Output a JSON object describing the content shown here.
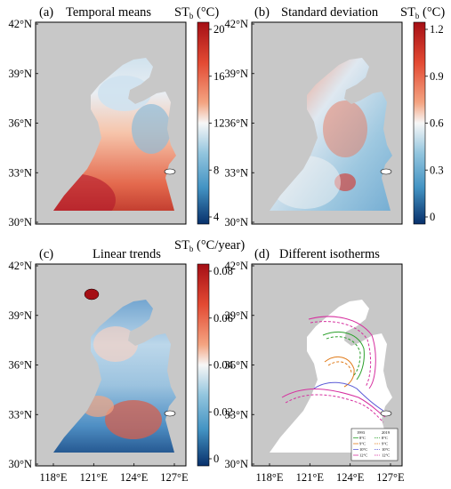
{
  "panels": [
    {
      "tag": "(a)",
      "title": "Temporal means",
      "cb_label": "ST",
      "cb_sub": "b",
      "cb_unit": " (°C)",
      "cb_ticks": [
        "20",
        "16",
        "12",
        "8",
        "4"
      ]
    },
    {
      "tag": "(b)",
      "title": "Standard deviation",
      "cb_label": "ST",
      "cb_sub": "b",
      "cb_unit": " (°C)",
      "cb_ticks": [
        "1.2",
        "0.9",
        "0.6",
        "0.3",
        "0"
      ]
    },
    {
      "tag": "(c)",
      "title": "Linear trends",
      "cb_label": "ST",
      "cb_sub": "b",
      "cb_unit": " (°C/year)",
      "cb_ticks": [
        "0.08",
        "0.06",
        "0.04",
        "0.02",
        "0"
      ]
    },
    {
      "tag": "(d)",
      "title": "Different isotherms"
    }
  ],
  "axes": {
    "lat_ticks": [
      "42°N",
      "39°N",
      "36°N",
      "33°N",
      "30°N"
    ],
    "lon_ticks": [
      "118°E",
      "121°E",
      "124°E",
      "127°E"
    ]
  },
  "legend": {
    "col1": "1993",
    "col2": "2019",
    "rows": [
      {
        "a": "8°C",
        "b": "8°C",
        "color": "#2ca02c"
      },
      {
        "a": "9°C",
        "b": "9°C",
        "color": "#e07b1a"
      },
      {
        "a": "10°C",
        "b": "10°C",
        "color": "#5b5bd6"
      },
      {
        "a": "12°C",
        "b": "12°C",
        "color": "#d62f9f"
      }
    ]
  },
  "colors": {
    "land": "#c8c8c8",
    "deep_red": "#a50f15",
    "red": "#e34a33",
    "light_red": "#f4a582",
    "white": "#f7f7f7",
    "light_blue": "#92c5de",
    "blue": "#4393c3",
    "deep_blue": "#08306b"
  }
}
